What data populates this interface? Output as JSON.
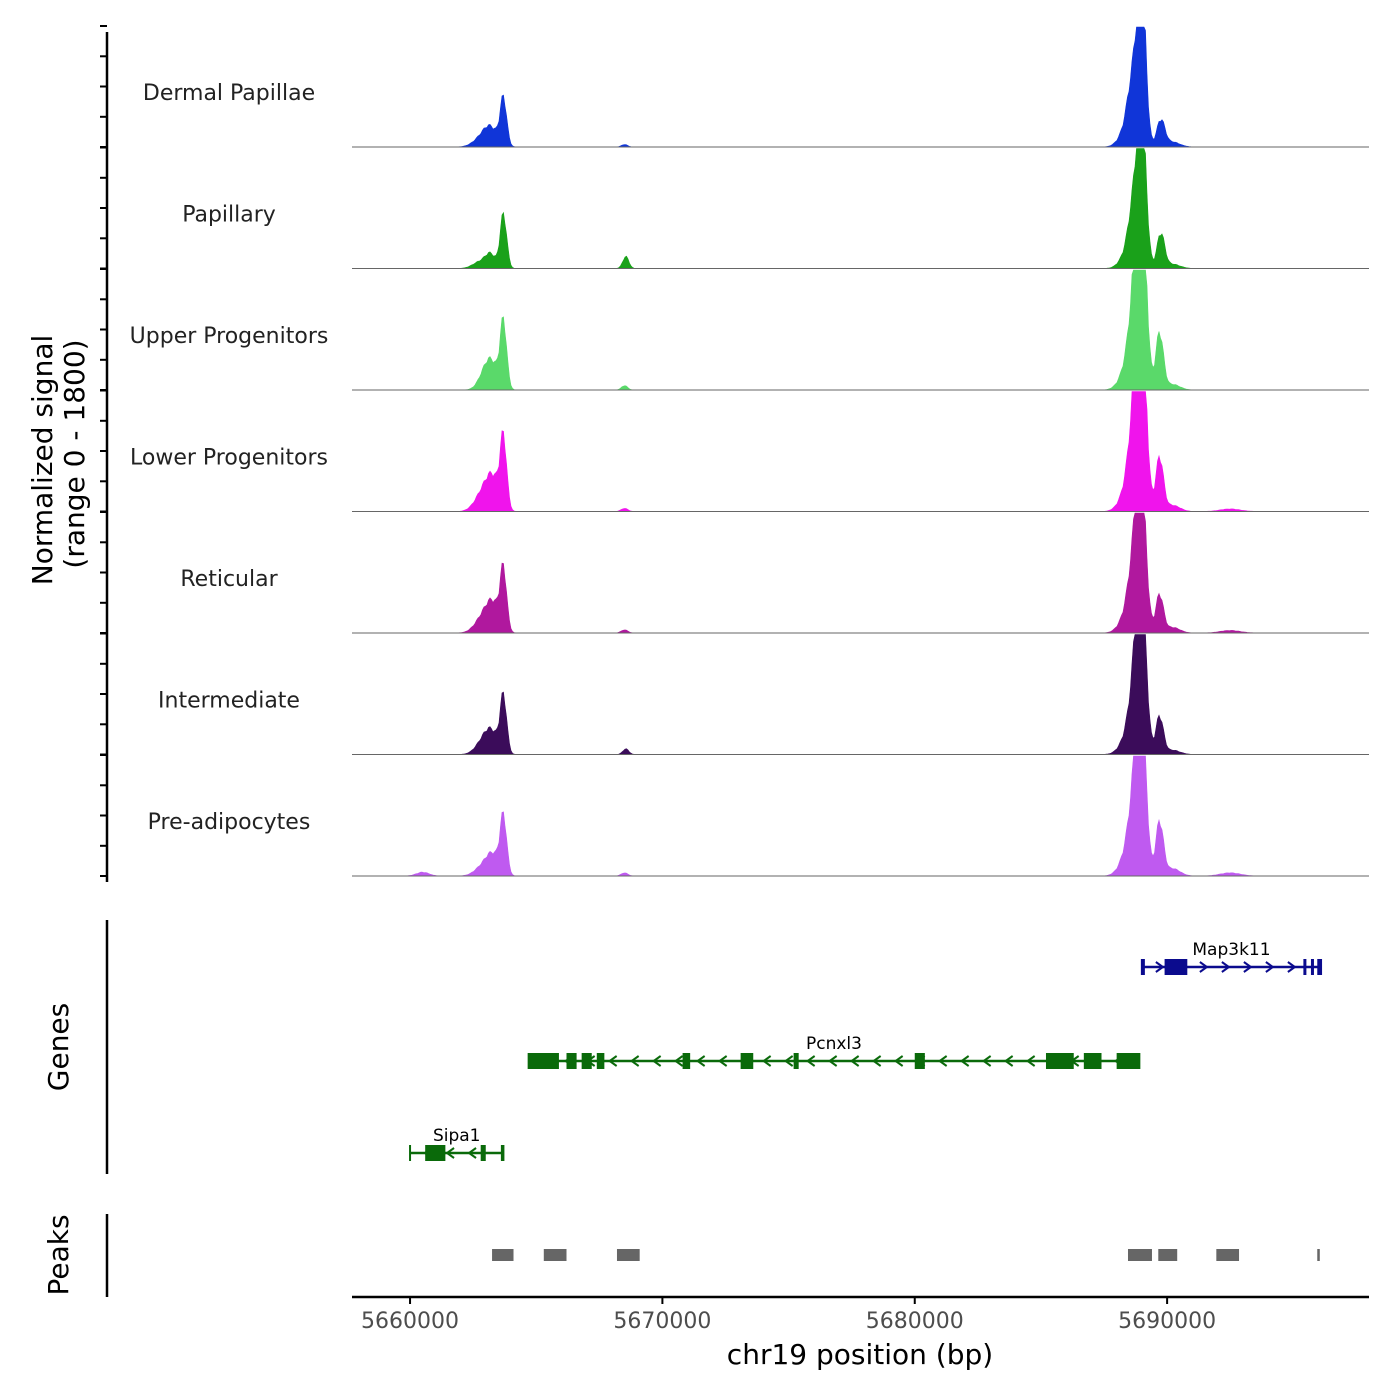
{
  "chart_data": {
    "type": "area",
    "title": "",
    "chromosome": "chr19",
    "xlabel": "chr19 position (bp)",
    "xlim": [
      5657700,
      5698000
    ],
    "x_ticks": [
      5660000,
      5670000,
      5680000,
      5690000
    ],
    "coverage_panel": {
      "ylabel_line1": "Normalized signal",
      "ylabel_line2": "(range 0 - 1800)",
      "ylim": [
        0,
        1800
      ],
      "tracks": [
        {
          "name": "Dermal Papillae",
          "color": "#1035d8",
          "peaks": [
            [
              5663700,
              750,
              130
            ],
            [
              5663200,
              280,
              280
            ],
            [
              5662800,
              120,
              320
            ],
            [
              5668500,
              40,
              120
            ],
            [
              5688500,
              350,
              320
            ],
            [
              5688950,
              1250,
              160
            ],
            [
              5689050,
              1200,
              150
            ],
            [
              5688700,
              900,
              220
            ],
            [
              5689750,
              420,
              160
            ],
            [
              5690200,
              80,
              300
            ]
          ]
        },
        {
          "name": "Papillary",
          "color": "#1aa11a",
          "peaks": [
            [
              5663700,
              860,
              130
            ],
            [
              5663200,
              200,
              200
            ],
            [
              5662800,
              110,
              300
            ],
            [
              5668550,
              190,
              120
            ],
            [
              5688500,
              300,
              300
            ],
            [
              5688950,
              1220,
              170
            ],
            [
              5689050,
              1180,
              160
            ],
            [
              5688700,
              800,
              200
            ],
            [
              5689750,
              550,
              150
            ],
            [
              5690200,
              70,
              300
            ]
          ]
        },
        {
          "name": "Upper Progenitors",
          "color": "#5ad96a",
          "peaks": [
            [
              5663700,
              1050,
              130
            ],
            [
              5663250,
              380,
              260
            ],
            [
              5662950,
              200,
              260
            ],
            [
              5668500,
              70,
              120
            ],
            [
              5688500,
              400,
              320
            ],
            [
              5688900,
              1800,
              180
            ],
            [
              5689050,
              1700,
              170
            ],
            [
              5688700,
              900,
              220
            ],
            [
              5689700,
              900,
              150
            ],
            [
              5690200,
              90,
              300
            ]
          ]
        },
        {
          "name": "Lower Progenitors",
          "color": "#f014ec",
          "peaks": [
            [
              5663700,
              1100,
              130
            ],
            [
              5663300,
              450,
              260
            ],
            [
              5662900,
              300,
              320
            ],
            [
              5668500,
              50,
              130
            ],
            [
              5688500,
              400,
              320
            ],
            [
              5688900,
              1750,
              180
            ],
            [
              5689050,
              1650,
              170
            ],
            [
              5688700,
              1000,
              220
            ],
            [
              5689700,
              850,
              150
            ],
            [
              5690200,
              100,
              300
            ],
            [
              5692500,
              40,
              400
            ]
          ]
        },
        {
          "name": "Reticular",
          "color": "#b0189e",
          "peaks": [
            [
              5663700,
              950,
              130
            ],
            [
              5663300,
              400,
              260
            ],
            [
              5662900,
              250,
              320
            ],
            [
              5668500,
              50,
              130
            ],
            [
              5688500,
              350,
              320
            ],
            [
              5688900,
              1250,
              180
            ],
            [
              5689050,
              1200,
              170
            ],
            [
              5688700,
              800,
              220
            ],
            [
              5689700,
              600,
              150
            ],
            [
              5690200,
              90,
              300
            ],
            [
              5692500,
              40,
              400
            ]
          ]
        },
        {
          "name": "Intermediate",
          "color": "#3b0c5a",
          "peaks": [
            [
              5663700,
              900,
              130
            ],
            [
              5663250,
              300,
              260
            ],
            [
              5662900,
              200,
              300
            ],
            [
              5668550,
              90,
              120
            ],
            [
              5688500,
              300,
              320
            ],
            [
              5688900,
              1500,
              180
            ],
            [
              5689050,
              1400,
              170
            ],
            [
              5688700,
              700,
              220
            ],
            [
              5689700,
              600,
              150
            ],
            [
              5690200,
              70,
              300
            ]
          ]
        },
        {
          "name": "Pre-adipocytes",
          "color": "#bf5af0",
          "peaks": [
            [
              5663700,
              900,
              130
            ],
            [
              5663300,
              300,
              260
            ],
            [
              5662900,
              150,
              320
            ],
            [
              5668500,
              50,
              130
            ],
            [
              5688500,
              400,
              320
            ],
            [
              5688900,
              1450,
              180
            ],
            [
              5689050,
              1350,
              170
            ],
            [
              5688700,
              800,
              220
            ],
            [
              5689700,
              850,
              150
            ],
            [
              5690200,
              120,
              300
            ],
            [
              5660500,
              60,
              250
            ],
            [
              5692500,
              50,
              400
            ]
          ]
        }
      ]
    },
    "genes_panel": {
      "ylabel": "Genes",
      "genes": [
        {
          "name": "Map3k11",
          "strand": "+",
          "start": 5689000,
          "end": 5696100,
          "color": "#0b0b8e",
          "exons": [
            [
              5689000,
              5689100
            ],
            [
              5689900,
              5690800
            ],
            [
              5695400,
              5695500
            ],
            [
              5695700,
              5695800
            ],
            [
              5695950,
              5696100
            ]
          ]
        },
        {
          "name": "Pcnxl3",
          "strand": "-",
          "start": 5664700,
          "end": 5688900,
          "color": "#0a6a0a",
          "exons": [
            [
              5664700,
              5665900
            ],
            [
              5666200,
              5666600
            ],
            [
              5666800,
              5667200
            ],
            [
              5667400,
              5667700
            ],
            [
              5670800,
              5671100
            ],
            [
              5673100,
              5673600
            ],
            [
              5675200,
              5675400
            ],
            [
              5680000,
              5680400
            ],
            [
              5685200,
              5686300
            ],
            [
              5686700,
              5687400
            ],
            [
              5688000,
              5688900
            ]
          ]
        },
        {
          "name": "Sipa1",
          "strand": "-",
          "start": 5660000,
          "end": 5663700,
          "color": "#0a6a0a",
          "exons": [
            [
              5660600,
              5661400
            ],
            [
              5662800,
              5663000
            ],
            [
              5663600,
              5663700
            ]
          ]
        }
      ]
    },
    "peaks_panel": {
      "ylabel": "Peaks",
      "color": "#666666",
      "regions": [
        [
          5663250,
          5664100
        ],
        [
          5665300,
          5666200
        ],
        [
          5668200,
          5669100
        ],
        [
          5688450,
          5689400
        ],
        [
          5689650,
          5690400
        ],
        [
          5691950,
          5692850
        ],
        [
          5695950,
          5696050
        ]
      ]
    }
  }
}
